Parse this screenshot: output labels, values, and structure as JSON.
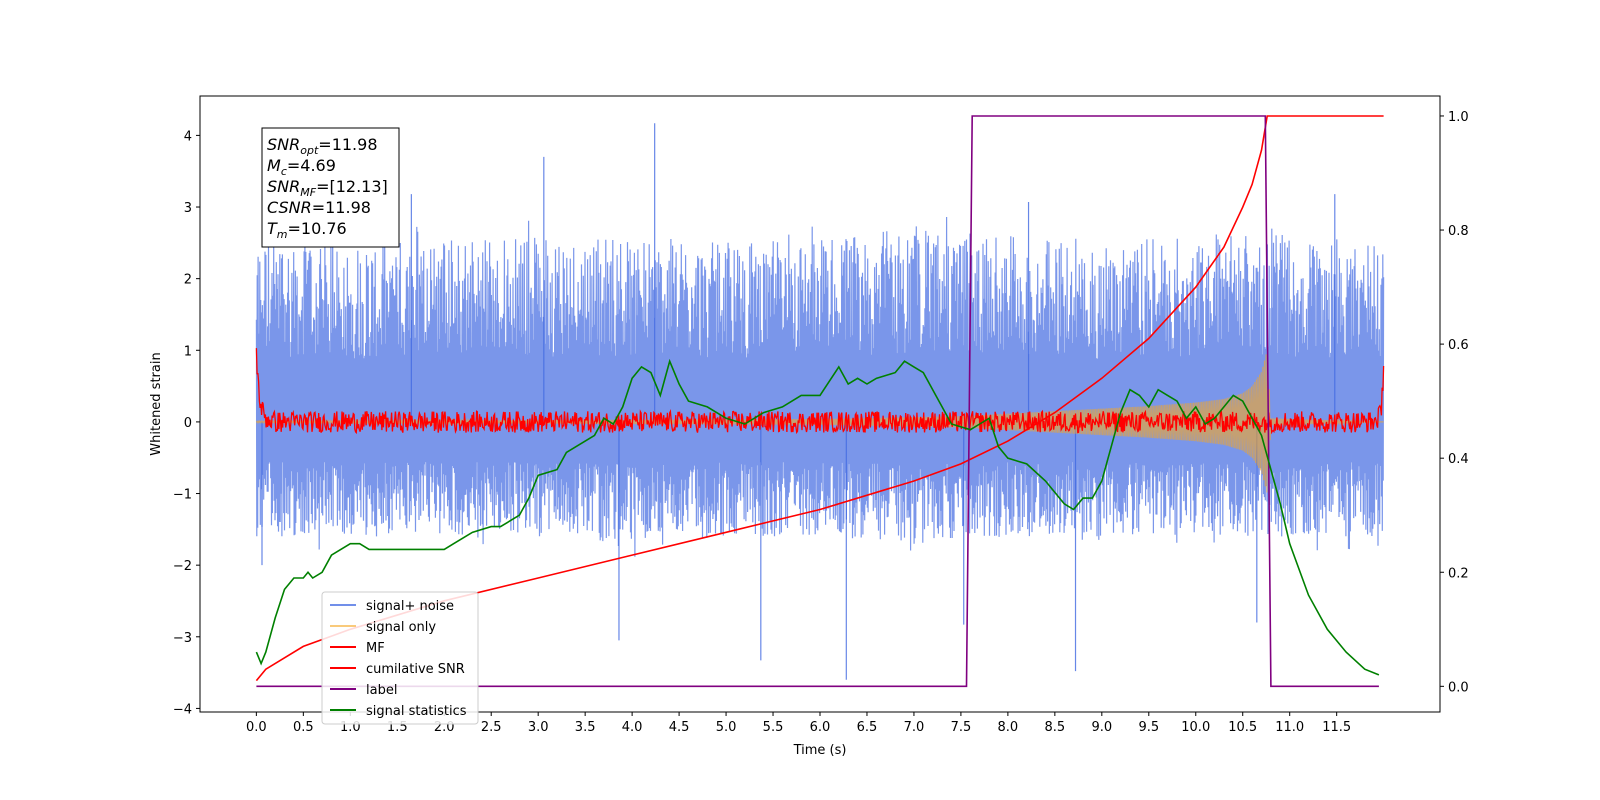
{
  "chart_data": {
    "type": "line",
    "xlabel": "Time (s)",
    "ylabel": "Whitened strain",
    "xlim": [
      -0.6,
      12.6
    ],
    "ylim": [
      -4.05,
      4.55
    ],
    "ylim_right": [
      -0.045,
      1.035
    ],
    "grid": false,
    "legend_position": "lower-left",
    "x_ticks": [
      "0.0",
      "0.5",
      "1.0",
      "1.5",
      "2.0",
      "2.5",
      "3.0",
      "3.5",
      "4.0",
      "4.5",
      "5.0",
      "5.5",
      "6.0",
      "6.5",
      "7.0",
      "7.5",
      "8.0",
      "8.5",
      "9.0",
      "9.5",
      "10.0",
      "10.5",
      "11.0",
      "11.5"
    ],
    "y_ticks_left": [
      "−4",
      "−3",
      "−2",
      "−1",
      "0",
      "1",
      "2",
      "3",
      "4"
    ],
    "y_ticks_right": [
      "0.0",
      "0.2",
      "0.4",
      "0.6",
      "0.8",
      "1.0"
    ],
    "annotation": [
      {
        "base": "SNR",
        "sub": "opt",
        "value": "=11.98"
      },
      {
        "base": "M",
        "sub": "c",
        "value": "=4.69"
      },
      {
        "base": "SNR",
        "sub": "MF",
        "value": "=[12.13]"
      },
      {
        "base": "CSNR",
        "sub": "",
        "value": "=11.98"
      },
      {
        "base": "T",
        "sub": "m",
        "value": "=10.76"
      }
    ],
    "series": [
      {
        "name": "signal+ noise",
        "color": "#4169e1",
        "axis": "left",
        "style": "noise band",
        "envelope_x": [
          0,
          1,
          2,
          3,
          4,
          5,
          6,
          7,
          8,
          9,
          10,
          10.5,
          11,
          12
        ],
        "upper": [
          2.6,
          2.5,
          2.6,
          2.6,
          2.6,
          2.5,
          2.6,
          2.7,
          2.6,
          2.5,
          2.6,
          2.7,
          2.6,
          2.5
        ],
        "lower": [
          -1.6,
          -1.6,
          -1.6,
          -1.6,
          -1.7,
          -1.6,
          -1.6,
          -1.7,
          -1.6,
          -1.6,
          -1.6,
          -1.6,
          -1.6,
          -1.6
        ],
        "peaks": [
          {
            "x": 4.24,
            "y": 4.17
          },
          {
            "x": 3.06,
            "y": 3.7
          },
          {
            "x": 1.65,
            "y": 3.18
          },
          {
            "x": 8.22,
            "y": 3.07
          },
          {
            "x": 11.48,
            "y": 3.18
          },
          {
            "x": 6.28,
            "y": -3.6
          },
          {
            "x": 8.72,
            "y": -3.48
          },
          {
            "x": 5.37,
            "y": -3.33
          },
          {
            "x": 3.86,
            "y": -3.05
          },
          {
            "x": 7.53,
            "y": -2.83
          },
          {
            "x": 10.65,
            "y": -2.8
          },
          {
            "x": 0.06,
            "y": -2.0
          }
        ]
      },
      {
        "name": "signal only",
        "color": "#f5a623",
        "axis": "left",
        "style": "chirp",
        "x": [
          0,
          2,
          4,
          6,
          7.5,
          8.5,
          9.5,
          10.0,
          10.3,
          10.5,
          10.6,
          10.7,
          10.76,
          10.8,
          12
        ],
        "amp": [
          0.01,
          0.02,
          0.03,
          0.04,
          0.08,
          0.15,
          0.22,
          0.27,
          0.32,
          0.4,
          0.5,
          0.7,
          1.0,
          0.05,
          0.0
        ]
      },
      {
        "name": "MF",
        "color": "#ff0000",
        "axis": "left",
        "style": "noisy line",
        "x": [
          0,
          0.02,
          0.05,
          0.1,
          0.2,
          0.4,
          11.9,
          11.97,
          11.99,
          12.0
        ],
        "y": [
          1.0,
          0.5,
          0.2,
          0.05,
          0.0,
          0.0,
          0.0,
          0.1,
          0.5,
          0.9
        ]
      },
      {
        "name": "cumilative SNR",
        "color": "#ff0000",
        "axis": "right",
        "x": [
          0,
          0.1,
          0.5,
          1.0,
          2.0,
          3.0,
          4.0,
          5.0,
          6.0,
          7.0,
          7.5,
          8.0,
          8.5,
          9.0,
          9.5,
          10.0,
          10.3,
          10.5,
          10.6,
          10.7,
          10.76,
          12.0
        ],
        "y": [
          0.01,
          0.03,
          0.07,
          0.1,
          0.15,
          0.19,
          0.23,
          0.27,
          0.31,
          0.36,
          0.39,
          0.43,
          0.48,
          0.54,
          0.61,
          0.7,
          0.77,
          0.84,
          0.88,
          0.94,
          1.0,
          1.0
        ]
      },
      {
        "name": "label",
        "color": "#800080",
        "axis": "right",
        "x": [
          0,
          7.56,
          7.62,
          10.74,
          10.8,
          11.95
        ],
        "y": [
          0,
          0,
          1,
          1,
          0,
          0
        ]
      },
      {
        "name": "signal statistics",
        "color": "#008000",
        "axis": "right",
        "x": [
          0,
          0.05,
          0.1,
          0.2,
          0.3,
          0.4,
          0.5,
          0.55,
          0.6,
          0.7,
          0.8,
          1.0,
          1.1,
          1.2,
          1.4,
          1.6,
          1.8,
          2.0,
          2.1,
          2.3,
          2.5,
          2.6,
          2.8,
          2.9,
          3.0,
          3.2,
          3.3,
          3.5,
          3.6,
          3.7,
          3.8,
          3.9,
          4.0,
          4.1,
          4.2,
          4.3,
          4.4,
          4.5,
          4.6,
          4.8,
          5.0,
          5.2,
          5.4,
          5.6,
          5.8,
          6.0,
          6.2,
          6.3,
          6.4,
          6.5,
          6.6,
          6.8,
          6.9,
          7.0,
          7.1,
          7.2,
          7.4,
          7.6,
          7.7,
          7.8,
          7.9,
          8.0,
          8.2,
          8.4,
          8.6,
          8.7,
          8.8,
          8.9,
          9.0,
          9.1,
          9.2,
          9.3,
          9.4,
          9.5,
          9.6,
          9.7,
          9.8,
          9.9,
          10.0,
          10.1,
          10.2,
          10.3,
          10.4,
          10.5,
          10.6,
          10.7,
          10.8,
          10.9,
          11.0,
          11.2,
          11.4,
          11.6,
          11.8,
          11.95
        ],
        "y": [
          0.06,
          0.04,
          0.06,
          0.12,
          0.17,
          0.19,
          0.19,
          0.2,
          0.19,
          0.2,
          0.23,
          0.25,
          0.25,
          0.24,
          0.24,
          0.24,
          0.24,
          0.24,
          0.25,
          0.27,
          0.28,
          0.28,
          0.3,
          0.33,
          0.37,
          0.38,
          0.41,
          0.43,
          0.44,
          0.47,
          0.46,
          0.49,
          0.54,
          0.56,
          0.55,
          0.51,
          0.57,
          0.53,
          0.5,
          0.49,
          0.47,
          0.46,
          0.48,
          0.49,
          0.51,
          0.51,
          0.56,
          0.53,
          0.54,
          0.53,
          0.54,
          0.55,
          0.57,
          0.56,
          0.55,
          0.52,
          0.46,
          0.45,
          0.46,
          0.47,
          0.42,
          0.4,
          0.39,
          0.36,
          0.32,
          0.31,
          0.33,
          0.33,
          0.36,
          0.42,
          0.48,
          0.52,
          0.51,
          0.49,
          0.52,
          0.51,
          0.5,
          0.47,
          0.49,
          0.46,
          0.47,
          0.49,
          0.51,
          0.5,
          0.47,
          0.44,
          0.38,
          0.32,
          0.25,
          0.16,
          0.1,
          0.06,
          0.03,
          0.02
        ]
      }
    ]
  }
}
